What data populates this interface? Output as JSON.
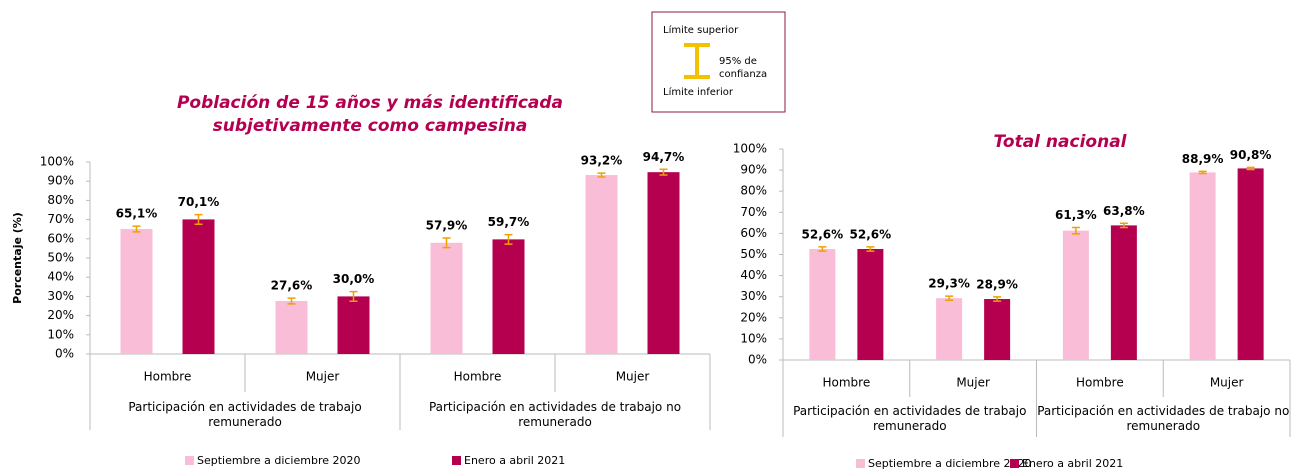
{
  "chart_data": [
    {
      "type": "bar",
      "title": "Población de 15 años y más identificada subjetivamente como campesina",
      "y_label": "Porcentaje (%)",
      "categories": [
        "Hombre",
        "Mujer",
        "Hombre",
        "Mujer"
      ],
      "groups": [
        "Participación en actividades de trabajo remunerado",
        "Participación en actividades de trabajo no remunerado"
      ],
      "series": [
        {
          "name": "Septiembre a diciembre 2020",
          "color": "#f9bdd8",
          "values": [
            65.1,
            27.6,
            57.9,
            93.2
          ],
          "value_labels": [
            "65,1%",
            "27,6%",
            "57,9%",
            "93,2%"
          ],
          "errors": [
            1.5,
            1.5,
            2.5,
            1
          ]
        },
        {
          "name": "Enero a abril 2021",
          "color": "#b5004f",
          "values": [
            70.1,
            30.0,
            59.7,
            94.7
          ],
          "value_labels": [
            "70,1%",
            "30,0%",
            "59,7%",
            "94,7%"
          ],
          "errors": [
            2.5,
            2.5,
            2.5,
            1.5
          ]
        }
      ],
      "error_color": "#f0a000",
      "ylim": [
        0,
        100
      ],
      "yticks": [
        {
          "value": 0,
          "label": "0%"
        },
        {
          "value": 10,
          "label": "10%"
        },
        {
          "value": 20,
          "label": "20%"
        },
        {
          "value": 30,
          "label": "30%"
        },
        {
          "value": 40,
          "label": "40%"
        },
        {
          "value": 50,
          "label": "50%"
        },
        {
          "value": 60,
          "label": "60%"
        },
        {
          "value": 70,
          "label": "70%"
        },
        {
          "value": 80,
          "label": "80%"
        },
        {
          "value": 90,
          "label": "90%"
        },
        {
          "value": 100,
          "label": "100%"
        }
      ]
    },
    {
      "type": "bar",
      "title": "Total nacional",
      "categories": [
        "Hombre",
        "Mujer",
        "Hombre",
        "Mujer"
      ],
      "groups": [
        "Participación en actividades de trabajo remunerado",
        "Participación en actividades de trabajo no remunerado"
      ],
      "series": [
        {
          "name": "Septiembre a diciembre 2020",
          "color": "#f9bdd8",
          "values": [
            52.6,
            29.3,
            61.3,
            88.9
          ],
          "value_labels": [
            "52,6%",
            "29,3%",
            "61,3%",
            "88,9%"
          ],
          "errors": [
            1,
            1,
            1.5,
            0.5
          ]
        },
        {
          "name": "Enero a abril 2021",
          "color": "#b5004f",
          "values": [
            52.6,
            28.9,
            63.8,
            90.8
          ],
          "value_labels": [
            "52,6%",
            "28,9%",
            "63,8%",
            "90,8%"
          ],
          "errors": [
            1,
            1,
            1,
            0.5
          ]
        }
      ],
      "error_color": "#f0a000",
      "ylim": [
        0,
        100
      ],
      "yticks": [
        {
          "value": 0,
          "label": "0%"
        },
        {
          "value": 10,
          "label": "10%"
        },
        {
          "value": 20,
          "label": "20%"
        },
        {
          "value": 30,
          "label": "30%"
        },
        {
          "value": 40,
          "label": "40%"
        },
        {
          "value": 50,
          "label": "50%"
        },
        {
          "value": 60,
          "label": "60%"
        },
        {
          "value": 70,
          "label": "70%"
        },
        {
          "value": 80,
          "label": "80%"
        },
        {
          "value": 90,
          "label": "90%"
        },
        {
          "value": 100,
          "label": "100%"
        }
      ]
    }
  ],
  "ci_legend": {
    "upper": "Límite superior",
    "confidence": [
      "95% de",
      "confianza"
    ],
    "lower": "Límite inferior"
  }
}
